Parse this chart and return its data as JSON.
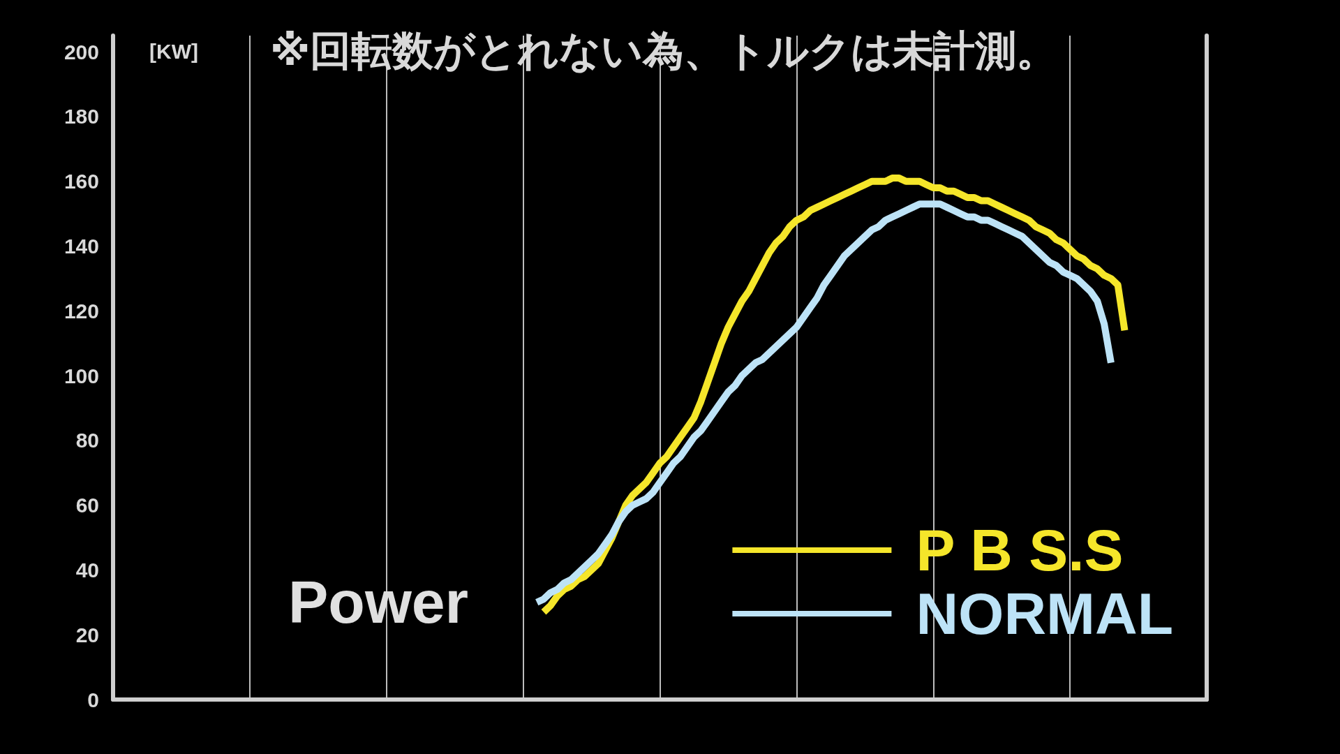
{
  "chart_data": {
    "type": "line",
    "title": "Power",
    "ylabel": "[KW]",
    "annotations": [
      "※回転数がとれない為、トルクは未計測。"
    ],
    "categories": [
      null,
      null,
      null,
      null,
      null,
      null,
      null,
      null,
      null,
      null,
      null,
      null,
      null,
      null,
      null,
      null,
      null,
      null,
      null,
      null,
      null,
      null,
      null,
      null,
      null,
      null,
      null,
      null,
      null,
      null,
      null,
      null,
      null,
      null,
      null,
      null,
      null,
      null,
      null,
      null,
      null,
      null,
      null,
      null,
      null,
      null,
      null,
      null,
      null,
      null,
      null,
      null,
      null,
      null,
      null,
      null,
      null,
      null,
      null,
      null,
      null,
      null,
      null,
      null,
      null,
      null,
      null,
      null,
      null,
      null,
      null,
      null,
      null,
      null,
      null,
      null,
      null,
      null,
      null,
      null,
      null,
      null,
      null,
      null,
      null,
      null,
      null,
      null,
      null,
      null,
      null,
      null,
      null,
      null,
      null,
      null,
      null,
      null,
      null,
      null,
      null,
      null,
      null,
      null,
      null,
      null,
      null,
      null,
      null,
      null,
      null,
      null,
      null,
      null,
      null,
      null,
      null,
      null,
      null,
      null,
      null,
      null,
      null,
      null,
      null,
      null,
      null,
      null,
      null,
      null,
      null,
      null,
      null,
      null,
      null,
      null,
      null,
      null,
      null,
      null,
      null,
      null,
      null,
      null,
      null,
      null,
      null,
      null,
      null,
      null,
      null,
      null,
      null,
      null,
      null,
      null,
      null,
      null,
      null,
      null,
      null
    ],
    "series": [
      {
        "name": "P B S.S",
        "color": "#f5e62a",
        "values": [
          null,
          null,
          null,
          null,
          null,
          null,
          null,
          null,
          null,
          null,
          null,
          null,
          null,
          null,
          null,
          null,
          null,
          null,
          null,
          null,
          null,
          null,
          null,
          null,
          null,
          null,
          null,
          null,
          null,
          null,
          null,
          null,
          null,
          null,
          null,
          null,
          null,
          null,
          null,
          null,
          null,
          null,
          null,
          null,
          null,
          null,
          null,
          null,
          null,
          null,
          null,
          null,
          null,
          null,
          null,
          null,
          null,
          null,
          null,
          null,
          null,
          null,
          null,
          27,
          29,
          32,
          34,
          35,
          37,
          38,
          40,
          42,
          46,
          50,
          55,
          60,
          63,
          65,
          67,
          70,
          73,
          75,
          78,
          81,
          84,
          87,
          92,
          98,
          104,
          110,
          115,
          119,
          123,
          126,
          130,
          134,
          138,
          141,
          143,
          146,
          148,
          149,
          151,
          152,
          153,
          154,
          155,
          156,
          157,
          158,
          159,
          160,
          160,
          160,
          161,
          161,
          160,
          160,
          160,
          159,
          158,
          158,
          157,
          157,
          156,
          155,
          155,
          154,
          154,
          153,
          152,
          151,
          150,
          149,
          148,
          146,
          145,
          144,
          142,
          141,
          139,
          137,
          136,
          134,
          133,
          131,
          130,
          128,
          114,
          null,
          null,
          null,
          null,
          null,
          null,
          null,
          null,
          null,
          null,
          null,
          null
        ]
      },
      {
        "name": "NORMAL",
        "color": "#bde3f7",
        "values": [
          null,
          null,
          null,
          null,
          null,
          null,
          null,
          null,
          null,
          null,
          null,
          null,
          null,
          null,
          null,
          null,
          null,
          null,
          null,
          null,
          null,
          null,
          null,
          null,
          null,
          null,
          null,
          null,
          null,
          null,
          null,
          null,
          null,
          null,
          null,
          null,
          null,
          null,
          null,
          null,
          null,
          null,
          null,
          null,
          null,
          null,
          null,
          null,
          null,
          null,
          null,
          null,
          null,
          null,
          null,
          null,
          null,
          null,
          null,
          null,
          null,
          null,
          30,
          31,
          33,
          34,
          36,
          37,
          39,
          41,
          43,
          45,
          48,
          51,
          55,
          58,
          60,
          61,
          62,
          64,
          67,
          70,
          73,
          75,
          78,
          81,
          83,
          86,
          89,
          92,
          95,
          97,
          100,
          102,
          104,
          105,
          107,
          109,
          111,
          113,
          115,
          118,
          121,
          124,
          128,
          131,
          134,
          137,
          139,
          141,
          143,
          145,
          146,
          148,
          149,
          150,
          151,
          152,
          153,
          153,
          153,
          153,
          152,
          151,
          150,
          149,
          149,
          148,
          148,
          147,
          146,
          145,
          144,
          143,
          141,
          139,
          137,
          135,
          134,
          132,
          131,
          130,
          128,
          126,
          123,
          116,
          104,
          null,
          null,
          null,
          null,
          null,
          null,
          null,
          null,
          null,
          null,
          null,
          null,
          null,
          null
        ]
      }
    ],
    "ylim": [
      0,
      205
    ],
    "yticks": [
      0,
      20,
      40,
      60,
      80,
      100,
      120,
      140,
      160,
      180,
      200
    ],
    "grid": "x",
    "legend": "bottom right",
    "tick_labels": "y",
    "marker": "none",
    "line_style": "solid"
  }
}
